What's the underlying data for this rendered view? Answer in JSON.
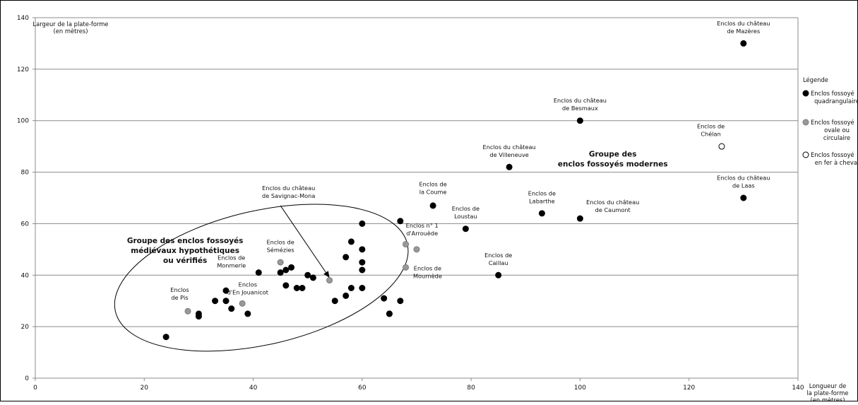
{
  "chart_data": {
    "type": "scatter",
    "xlim": [
      0,
      140
    ],
    "ylim": [
      0,
      140
    ],
    "xticks": [
      0,
      20,
      40,
      60,
      80,
      100,
      120,
      140
    ],
    "yticks": [
      0,
      20,
      40,
      60,
      80,
      100,
      120,
      140
    ],
    "grid": "horizontal",
    "ylabel": [
      "Largeur de la plate-forme",
      "(en mètres)"
    ],
    "xlabel": [
      "Longueur de",
      "la plate-forme",
      "(en mètres)"
    ],
    "colors": {
      "quadrangulaire": "#000000",
      "ovale": "#999999",
      "fer_a_cheval": "#ffffff"
    },
    "legend": {
      "title": "Légende",
      "position": "right",
      "items": [
        {
          "lines": [
            "Enclos fossoyé",
            "quadrangulaire"
          ],
          "shape": "quadrangulaire"
        },
        {
          "lines": [
            "Enclos fossoyé",
            "ovale ou",
            "circulaire"
          ],
          "shape": "ovale"
        },
        {
          "lines": [
            "Enclos fossoyé",
            "en fer à cheval"
          ],
          "shape": "fer_a_cheval"
        }
      ]
    },
    "series": [
      {
        "shape": "quadrangulaire",
        "points": [
          [
            24,
            16
          ],
          [
            30,
            25
          ],
          [
            30,
            24
          ],
          [
            33,
            30
          ],
          [
            35,
            34
          ],
          [
            35,
            30
          ],
          [
            36,
            27
          ],
          [
            39,
            25
          ],
          [
            41,
            41
          ],
          [
            45,
            41
          ],
          [
            46,
            42
          ],
          [
            46,
            36
          ],
          [
            47,
            43
          ],
          [
            48,
            35
          ],
          [
            49,
            35
          ],
          [
            50,
            40
          ],
          [
            51,
            39
          ],
          [
            55,
            30
          ],
          [
            57,
            32
          ],
          [
            57,
            47
          ],
          [
            58,
            53
          ],
          [
            58,
            35
          ],
          [
            60,
            60
          ],
          [
            60,
            50
          ],
          [
            60,
            45
          ],
          [
            60,
            42
          ],
          [
            60,
            35
          ],
          [
            64,
            31
          ],
          [
            65,
            25
          ],
          [
            65,
            25
          ],
          [
            67,
            30
          ],
          [
            67,
            61
          ],
          [
            73,
            67
          ],
          [
            79,
            58
          ],
          [
            85,
            40
          ],
          [
            87,
            82
          ],
          [
            93,
            64
          ],
          [
            100,
            100
          ],
          [
            100,
            62
          ],
          [
            130,
            130
          ],
          [
            130,
            70
          ]
        ]
      },
      {
        "shape": "ovale",
        "points": [
          [
            28,
            26
          ],
          [
            38,
            29
          ],
          [
            45,
            45
          ],
          [
            54,
            38
          ],
          [
            68,
            52
          ],
          [
            68,
            43
          ],
          [
            70,
            50
          ]
        ]
      },
      {
        "shape": "fer_a_cheval",
        "points": [
          [
            126,
            90
          ]
        ]
      }
    ],
    "annotations": [
      {
        "lines": [
          "Enclos du château",
          "de Mazères"
        ],
        "x": 130,
        "y": 137,
        "anchor": "middle"
      },
      {
        "lines": [
          "Enclos du château",
          "de Besmaux"
        ],
        "x": 100,
        "y": 107,
        "anchor": "middle"
      },
      {
        "lines": [
          "Enclos de",
          "Chélan"
        ],
        "x": 124,
        "y": 97,
        "anchor": "middle"
      },
      {
        "lines": [
          "Enclos du château",
          "de Villeneuve"
        ],
        "x": 87,
        "y": 89,
        "anchor": "middle"
      },
      {
        "lines": [
          "Enclos du château",
          "de Laas"
        ],
        "x": 130,
        "y": 77,
        "anchor": "middle"
      },
      {
        "lines": [
          "Enclos de",
          "Labarthe"
        ],
        "x": 93,
        "y": 71,
        "anchor": "middle"
      },
      {
        "lines": [
          "Enclos du château",
          "de Caumont"
        ],
        "x": 106,
        "y": 67.5,
        "anchor": "middle"
      },
      {
        "lines": [
          "Enclos de",
          "la Coume"
        ],
        "x": 73,
        "y": 74.5,
        "anchor": "middle"
      },
      {
        "lines": [
          "Enclos de",
          "Loustau"
        ],
        "x": 79,
        "y": 65,
        "anchor": "middle"
      },
      {
        "lines": [
          "Enclos n° 1",
          "d'Arrouède"
        ],
        "x": 71,
        "y": 58.5,
        "anchor": "middle"
      },
      {
        "lines": [
          "Enclos de",
          "Mournède"
        ],
        "x": 72,
        "y": 41.8,
        "anchor": "middle"
      },
      {
        "lines": [
          "Enclos de",
          "Caillau"
        ],
        "x": 85,
        "y": 47,
        "anchor": "middle"
      },
      {
        "lines": [
          "Enclos du château",
          "de Savignac-Mona"
        ],
        "x": 46.5,
        "y": 73,
        "anchor": "middle"
      },
      {
        "lines": [
          "Enclos de",
          "Sémézies"
        ],
        "x": 45,
        "y": 52,
        "anchor": "middle"
      },
      {
        "lines": [
          "Enclos de",
          "Monmerle"
        ],
        "x": 36,
        "y": 46,
        "anchor": "middle"
      },
      {
        "lines": [
          "Enclos",
          "d'En Jouanicot"
        ],
        "x": 39,
        "y": 35.5,
        "anchor": "middle"
      },
      {
        "lines": [
          "Enclos",
          "de Pis"
        ],
        "x": 26.5,
        "y": 33.5,
        "anchor": "middle"
      }
    ],
    "groups": [
      {
        "lines": [
          "Groupe des",
          "enclos fossoyés modernes"
        ],
        "x": 106,
        "y": 86
      },
      {
        "lines": [
          "Groupe des  enclos fossoyés",
          "médiévaux hypothétiques",
          "ou vérifiés"
        ],
        "x": 27.5,
        "y": 52.5
      }
    ],
    "ellipse": {
      "cx": 41.5,
      "cy": 39,
      "rx": 27.5,
      "ry": 26,
      "angle_deg": -13
    },
    "arrow": {
      "from": [
        45,
        67
      ],
      "to": [
        54,
        39
      ]
    }
  }
}
